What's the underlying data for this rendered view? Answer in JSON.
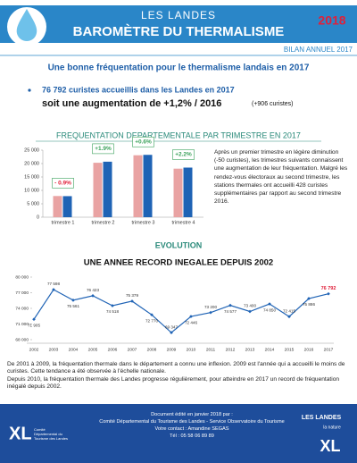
{
  "header": {
    "brand": "LES LANDES",
    "title": "BAROMÈTRE DU THERMALISME",
    "year": "2018",
    "subtitle": "BILAN ANNUEL 2017"
  },
  "headline": "Une bonne fréquentation pour le thermalisme landais en 2017",
  "key_figure": {
    "line1": "76 792 curistes accueillis dans les Landes en 2017",
    "line2": "soit une augmentation de +1,2% / 2016",
    "note": "(+906 curistes)"
  },
  "side_text": "Après un premier trimestre en légère diminution (-50 curistes), les trimestres suivants connaissent une augmentation de leur fréquentation. Malgré les rendez-vous électoraux au second trimestre, les stations thermales ont accueilli 428 curistes supplémentaires par rapport au second trimestre 2016.",
  "chart_data": [
    {
      "type": "bar",
      "title": "FREQUENTATION DEPARTEMENTALE PAR TRIMESTRE EN 2017",
      "categories": [
        "trimestre 1",
        "trimestre 2",
        "trimestre 3",
        "trimestre 4"
      ],
      "series": [
        {
          "color": "#e9a3a3",
          "values": [
            7900,
            20300,
            23100,
            18100
          ]
        },
        {
          "color": "#1f63b5",
          "values": [
            7850,
            20700,
            23250,
            18500
          ]
        }
      ],
      "annotations": [
        "- 0.9%",
        "+1.9%",
        "+0.6%",
        "+2.2%"
      ],
      "ylim": [
        0,
        25000
      ],
      "yticks": [
        0,
        {
          "value": 5000,
          "label": "5 000"
        },
        {
          "value": 10000,
          "label": "10 000"
        },
        {
          "value": 15000,
          "label": "15 000"
        },
        {
          "value": 20000,
          "label": "20 000"
        },
        {
          "value": 25000,
          "label": "25 000"
        }
      ]
    },
    {
      "type": "line",
      "title": "EVOLUTION",
      "subtitle": "UNE ANNEE RECORD INEGALEE DEPUIS 2002",
      "categories": [
        "2002",
        "2003",
        "2004",
        "2005",
        "2006",
        "2007",
        "2008",
        "2009",
        "2010",
        "2011",
        "2012",
        "2013",
        "2014",
        "2015",
        "2016",
        "2017"
      ],
      "series": [
        {
          "color": "#1f63b5",
          "values": [
            71905,
            77598,
            75561,
            76423,
            74518,
            75379,
            72770,
            69347,
            72446,
            73200,
            74577,
            73400,
            74850,
            72415,
            75886,
            76792
          ],
          "value_labels": [
            "71 905",
            "77 598",
            "75 561",
            "76 423",
            "74 518",
            "75 379",
            "72 770",
            "69 347",
            "72 446",
            "73 200",
            "74 577",
            "73 400",
            "74 850",
            "72 415",
            "75 886",
            "76 792"
          ]
        }
      ],
      "highlight_color": "#e0203a",
      "ylim": [
        68000,
        80000
      ],
      "yticks": [
        {
          "value": 68000,
          "label": "68 000"
        },
        {
          "value": 71000,
          "label": "71 000"
        },
        {
          "value": 74000,
          "label": "74 000"
        },
        {
          "value": 77000,
          "label": "77 000"
        },
        {
          "value": 80000,
          "label": "80 000"
        }
      ]
    }
  ],
  "body_text": [
    "De 2001 à 2009, la fréquentation thermale dans le département a connu une inflexion. 2009 est l'année qui a accueilli le moins de curistes. Cette tendance a été observée à l'échelle nationale.",
    "Depuis 2010, la fréquentation thermale des Landes progresse régulièrement, pour atteindre en 2017 un record de fréquentation inégalé depuis 2002."
  ],
  "footer": {
    "lines": [
      "Document édité en janvier 2018 par :",
      "Comité Départemental du Tourisme des Landes - Service Observatoire du Tourisme",
      "Votre contact : Amandine SEGAS",
      "Tél : 05 58 06 89 89"
    ],
    "left_logo": "XL",
    "left_logo_text": "Comité Départemental du Tourisme des Landes",
    "right_brand": "LES LANDES",
    "right_logo": "XL",
    "right_tagline": "la nature"
  }
}
